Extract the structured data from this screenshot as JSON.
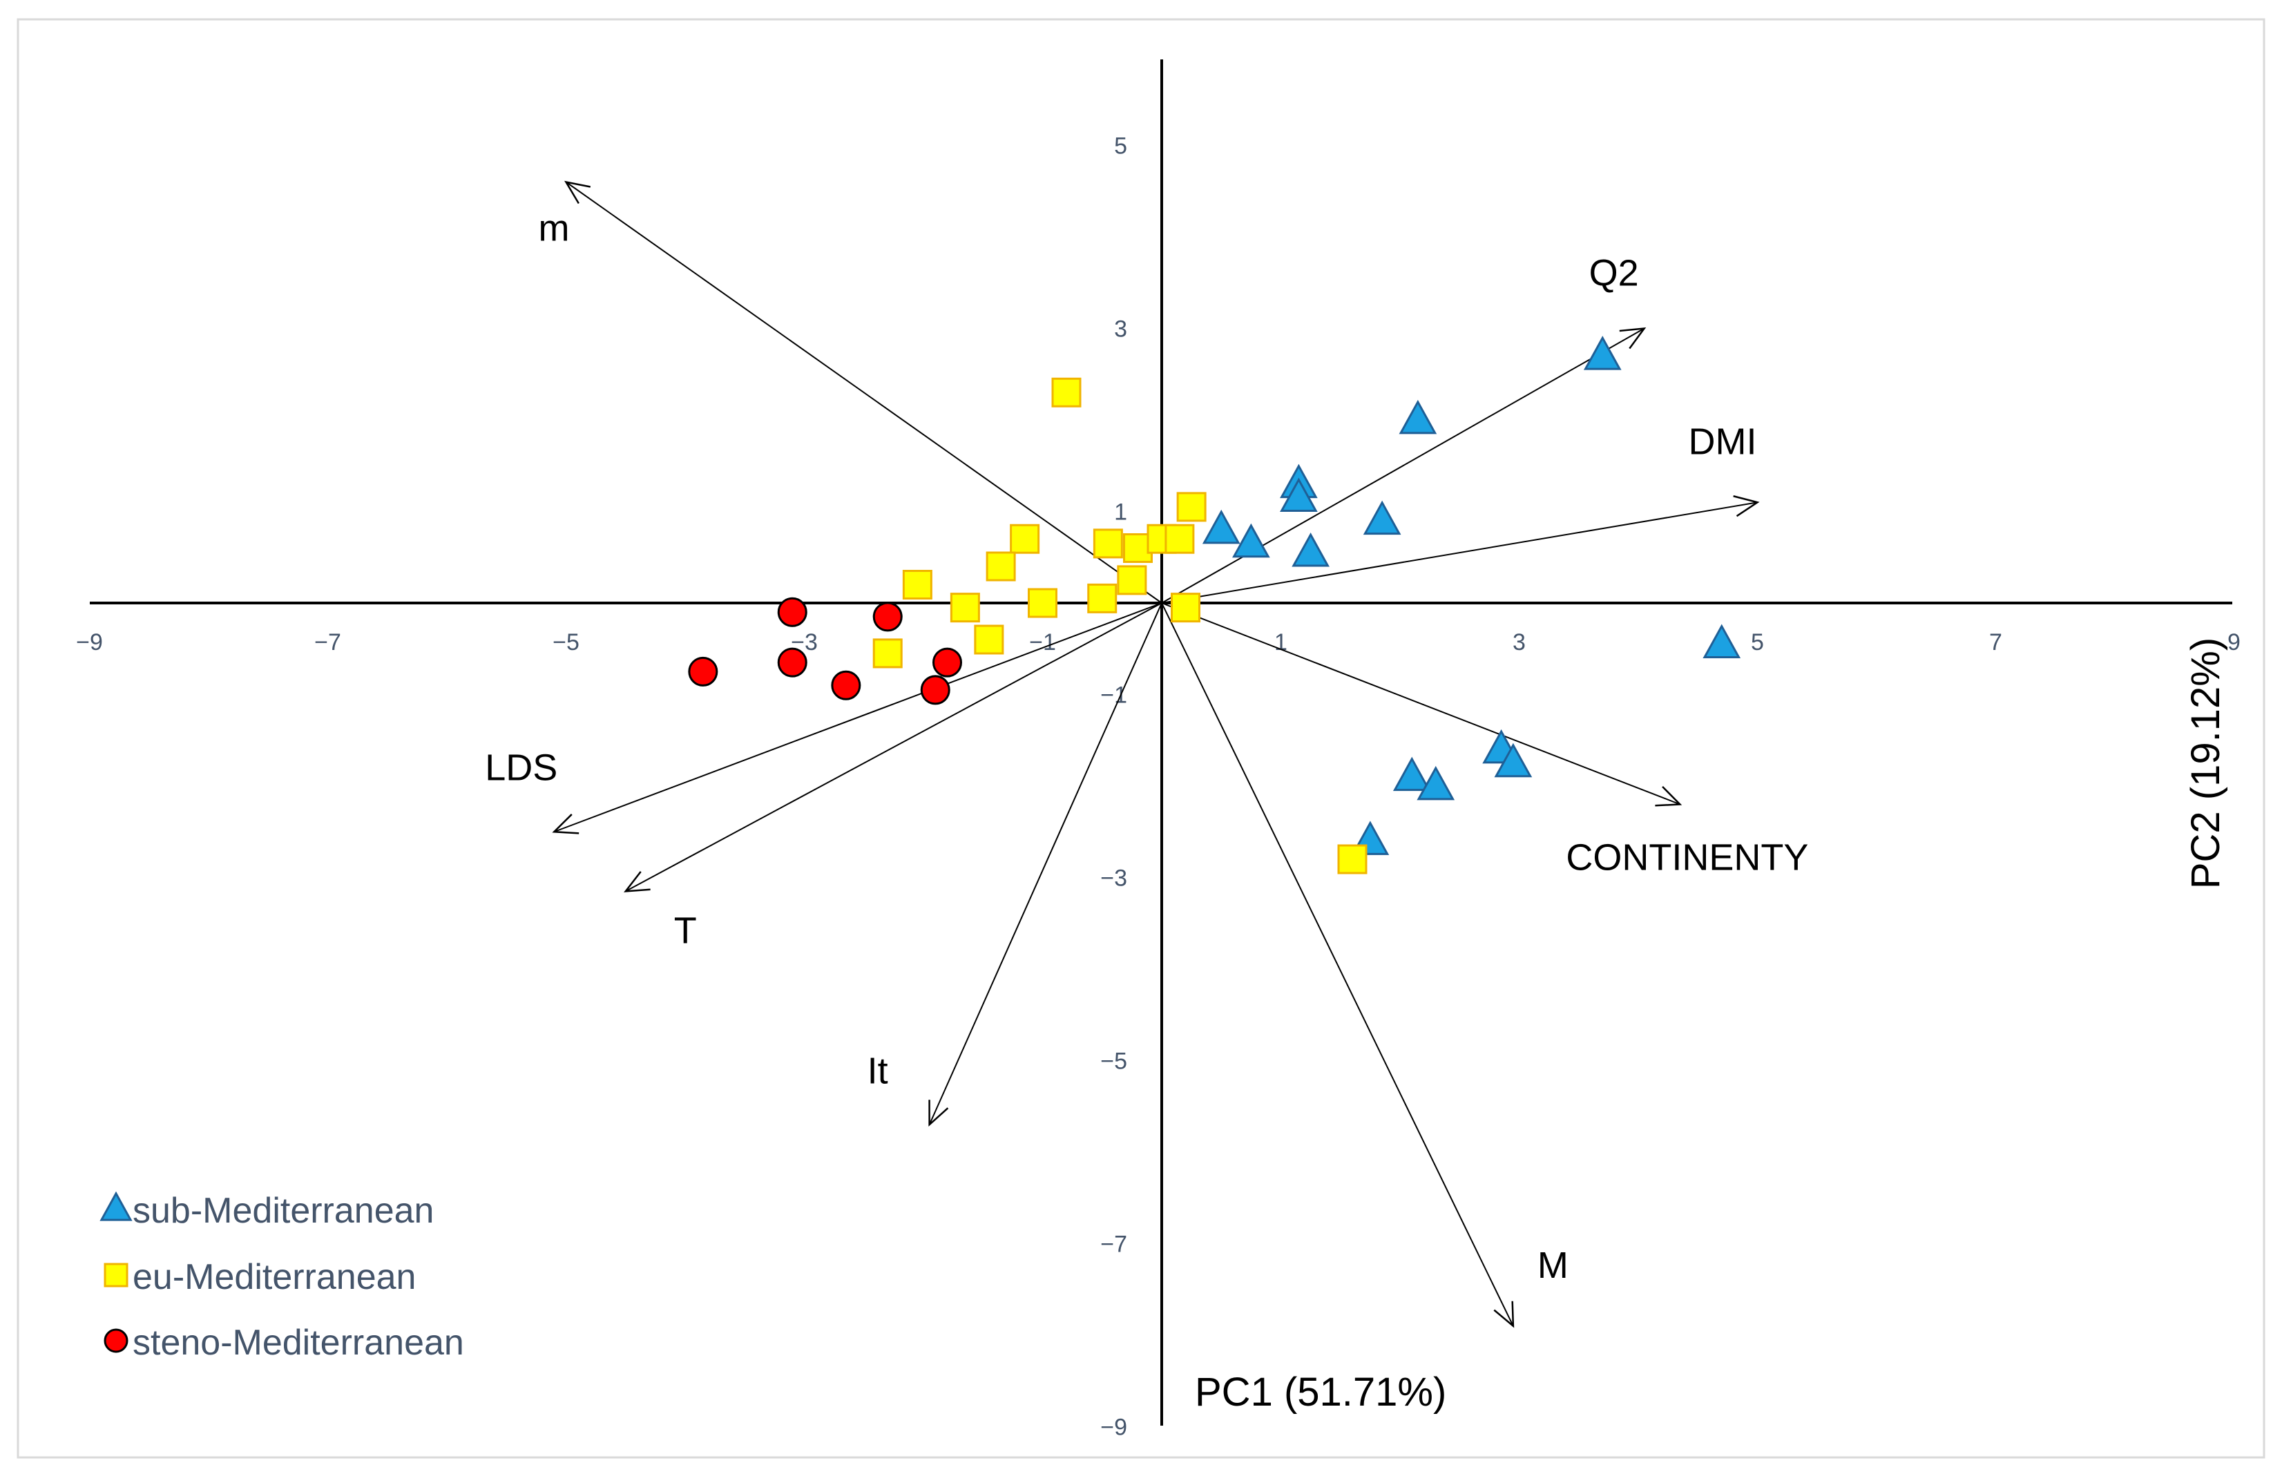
{
  "chart_data": {
    "type": "scatter",
    "title": "",
    "xlabel": "PC1 (51.71%)",
    "ylabel": "PC2 (19.12%)",
    "xlim": [
      -9,
      9
    ],
    "ylim": [
      -9,
      6
    ],
    "grid": false,
    "xticks": [
      -9,
      -7,
      -5,
      -3,
      -1,
      1,
      3,
      5,
      7,
      9
    ],
    "yticks": [
      -9,
      -7,
      -5,
      -3,
      -1,
      1,
      3,
      5
    ],
    "legend_position": "bottom-left",
    "series": [
      {
        "name": "sub-Mediterranean",
        "marker": "triangle",
        "color": "#1ba1e2",
        "points": [
          {
            "x": 3.7,
            "y": 2.7
          },
          {
            "x": 2.15,
            "y": 2.0
          },
          {
            "x": 1.15,
            "y": 1.3
          },
          {
            "x": 1.15,
            "y": 1.15
          },
          {
            "x": 1.85,
            "y": 0.9
          },
          {
            "x": 0.5,
            "y": 0.8
          },
          {
            "x": 0.75,
            "y": 0.65
          },
          {
            "x": 1.25,
            "y": 0.55
          },
          {
            "x": 4.7,
            "y": -0.45
          },
          {
            "x": 2.85,
            "y": -1.6
          },
          {
            "x": 2.95,
            "y": -1.75
          },
          {
            "x": 2.1,
            "y": -1.9
          },
          {
            "x": 2.3,
            "y": -2.0
          },
          {
            "x": 1.75,
            "y": -2.6
          }
        ]
      },
      {
        "name": "eu-Mediterranean",
        "marker": "square",
        "color": "#ffff00",
        "points": [
          {
            "x": -0.8,
            "y": 2.3
          },
          {
            "x": 0.25,
            "y": 1.05
          },
          {
            "x": -1.15,
            "y": 0.7
          },
          {
            "x": -0.45,
            "y": 0.65
          },
          {
            "x": -0.2,
            "y": 0.6
          },
          {
            "x": 0.0,
            "y": 0.7
          },
          {
            "x": 0.15,
            "y": 0.7
          },
          {
            "x": -1.35,
            "y": 0.4
          },
          {
            "x": -2.05,
            "y": 0.2
          },
          {
            "x": -0.25,
            "y": 0.25
          },
          {
            "x": -1.0,
            "y": 0.0
          },
          {
            "x": -0.5,
            "y": 0.05
          },
          {
            "x": -1.65,
            "y": -0.05
          },
          {
            "x": 0.2,
            "y": -0.05
          },
          {
            "x": -2.3,
            "y": -0.55
          },
          {
            "x": -1.45,
            "y": -0.4
          },
          {
            "x": 1.6,
            "y": -2.8
          }
        ]
      },
      {
        "name": "steno-Mediterranean",
        "marker": "circle",
        "color": "#ff0000",
        "points": [
          {
            "x": -3.1,
            "y": -0.1
          },
          {
            "x": -2.3,
            "y": -0.15
          },
          {
            "x": -3.85,
            "y": -0.75
          },
          {
            "x": -3.1,
            "y": -0.65
          },
          {
            "x": -2.65,
            "y": -0.9
          },
          {
            "x": -1.8,
            "y": -0.65
          },
          {
            "x": -1.9,
            "y": -0.95
          }
        ]
      }
    ],
    "vectors": [
      {
        "label": "m",
        "x": -5.0,
        "y": 4.6
      },
      {
        "label": "Q2",
        "x": 4.05,
        "y": 3.0
      },
      {
        "label": "DMI",
        "x": 5.0,
        "y": 1.1
      },
      {
        "label": "CONTINENTY",
        "x": 4.35,
        "y": -2.2
      },
      {
        "label": "LDS",
        "x": -5.1,
        "y": -2.5
      },
      {
        "label": "T",
        "x": -4.5,
        "y": -3.15
      },
      {
        "label": "It",
        "x": -1.95,
        "y": -5.7
      },
      {
        "label": "M",
        "x": 2.95,
        "y": -7.9
      }
    ]
  }
}
